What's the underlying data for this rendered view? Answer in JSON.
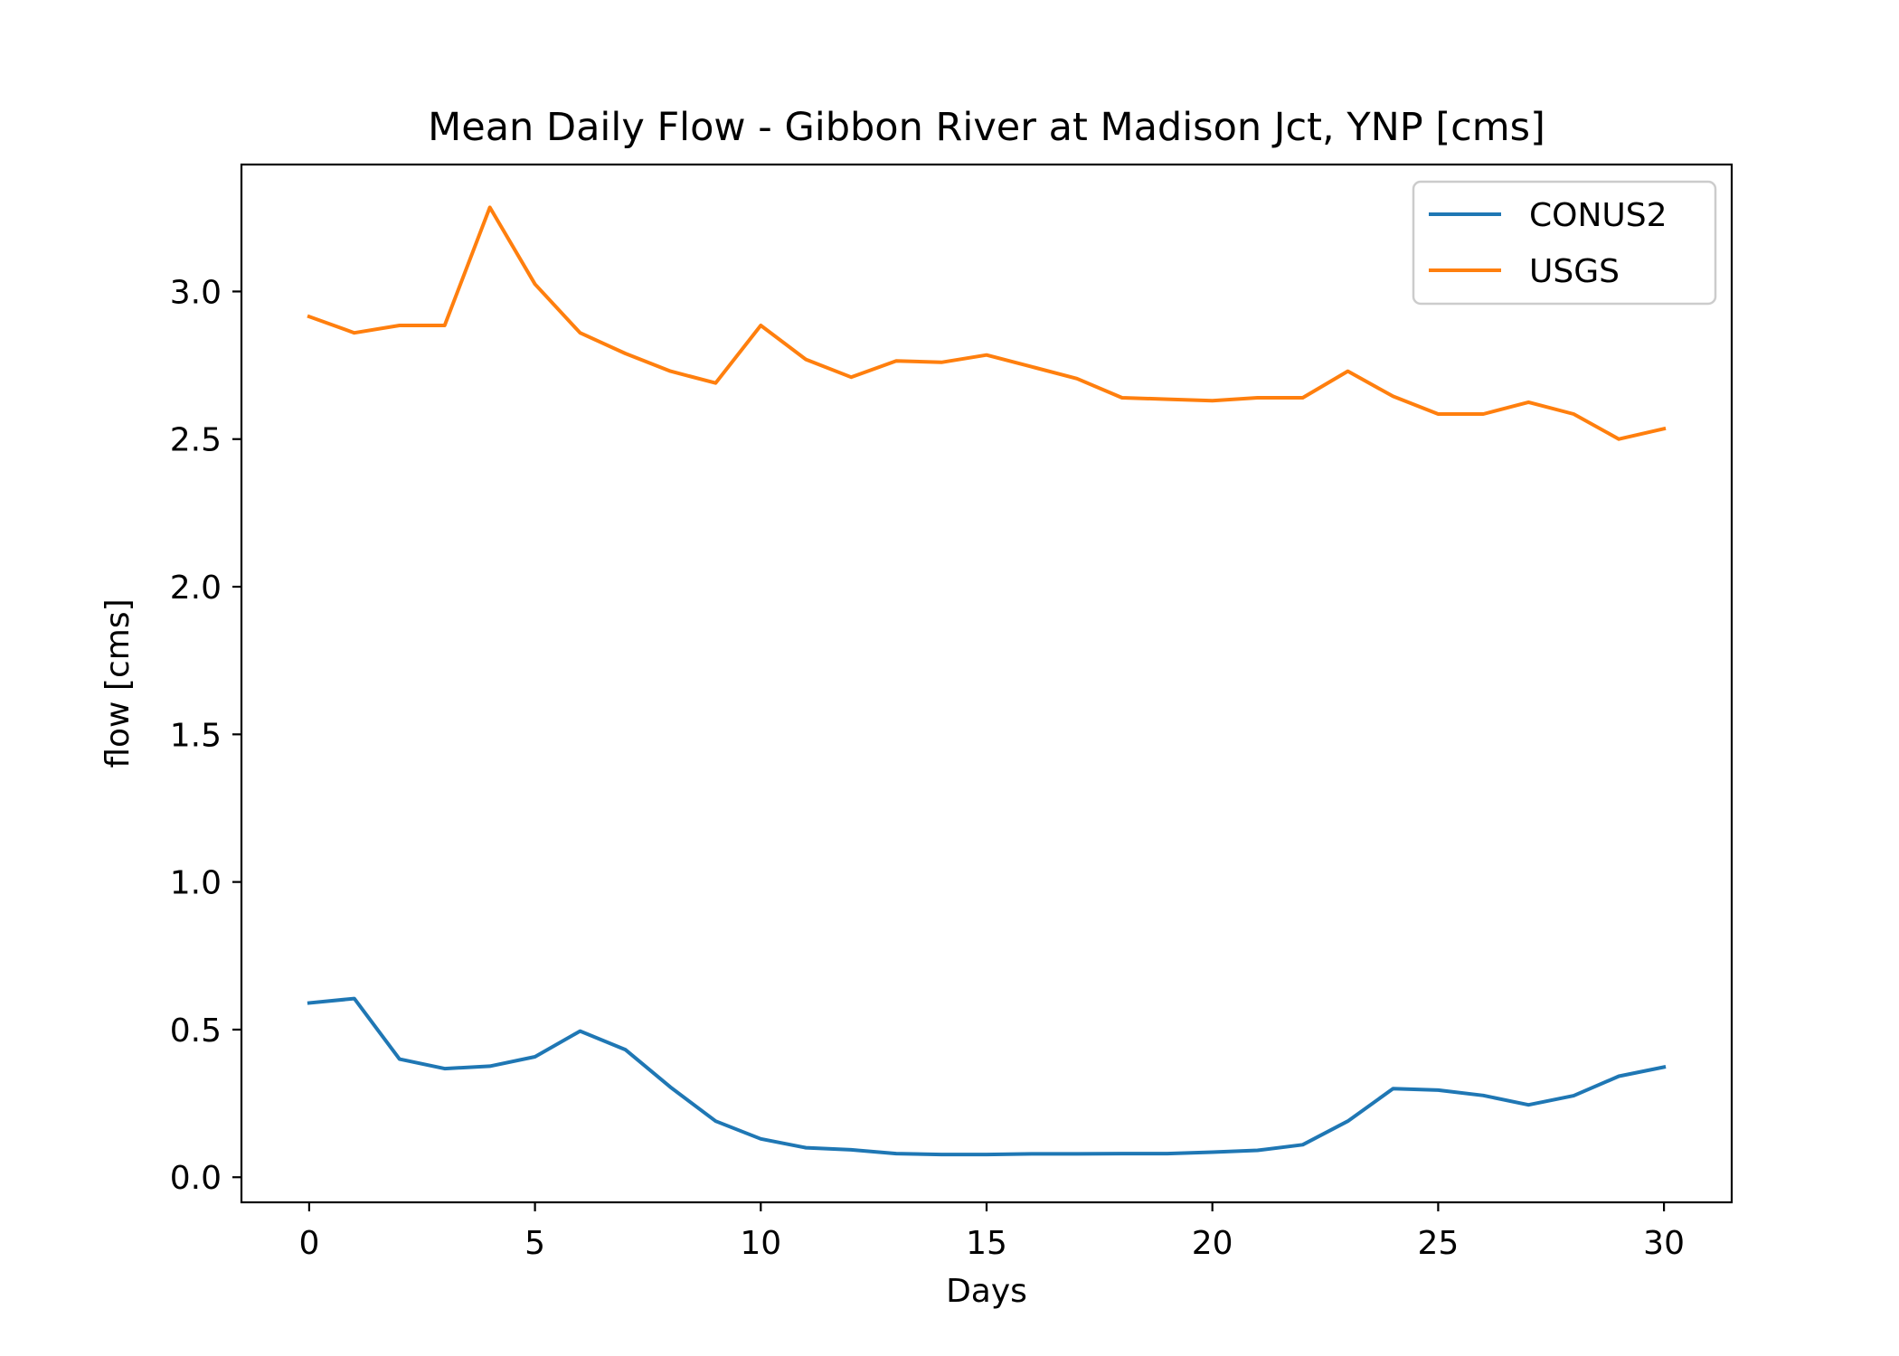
{
  "chart_data": {
    "type": "line",
    "title": "Mean Daily Flow - Gibbon River at Madison Jct, YNP [cms]",
    "xlabel": "Days",
    "ylabel": "flow [cms]",
    "xlim": [
      -1.5,
      31.5
    ],
    "ylim": [
      -0.085,
      3.43
    ],
    "xticks": [
      0,
      5,
      10,
      15,
      20,
      25,
      30
    ],
    "xtick_labels": [
      "0",
      "5",
      "10",
      "15",
      "20",
      "25",
      "30"
    ],
    "yticks": [
      0.0,
      0.5,
      1.0,
      1.5,
      2.0,
      2.5,
      3.0
    ],
    "ytick_labels": [
      "0.0",
      "0.5",
      "1.0",
      "1.5",
      "2.0",
      "2.5",
      "3.0"
    ],
    "grid": false,
    "legend_position": "upper right",
    "x": [
      0,
      1,
      2,
      3,
      4,
      5,
      6,
      7,
      8,
      9,
      10,
      11,
      12,
      13,
      14,
      15,
      16,
      17,
      18,
      19,
      20,
      21,
      22,
      23,
      24,
      25,
      26,
      27,
      28,
      29,
      30
    ],
    "series": [
      {
        "name": "CONUS2",
        "color": "#1f77b4",
        "values": [
          0.59,
          0.605,
          0.4,
          0.368,
          0.376,
          0.408,
          0.495,
          0.432,
          0.305,
          0.19,
          0.13,
          0.1,
          0.093,
          0.08,
          0.077,
          0.077,
          0.079,
          0.079,
          0.08,
          0.08,
          0.085,
          0.091,
          0.11,
          0.19,
          0.3,
          0.295,
          0.277,
          0.245,
          0.276,
          0.342,
          0.373
        ]
      },
      {
        "name": "USGS",
        "color": "#ff7f0e",
        "values": [
          2.915,
          2.86,
          2.885,
          2.885,
          3.285,
          3.025,
          2.86,
          2.79,
          2.73,
          2.69,
          2.885,
          2.77,
          2.71,
          2.765,
          2.76,
          2.785,
          2.745,
          2.705,
          2.64,
          2.635,
          2.63,
          2.64,
          2.64,
          2.73,
          2.645,
          2.585,
          2.585,
          2.625,
          2.585,
          2.5,
          2.535
        ]
      }
    ]
  }
}
